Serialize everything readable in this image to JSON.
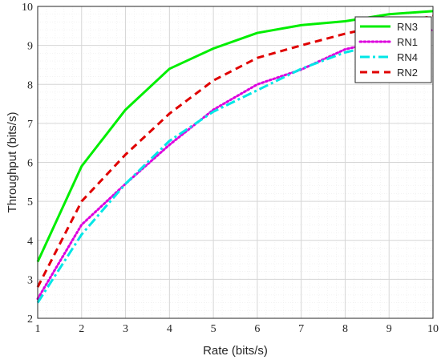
{
  "chart_data": {
    "type": "line",
    "title": "",
    "xlabel": "Rate (bits/s)",
    "ylabel": "Throughput (bits/s)",
    "xlim": [
      1,
      10
    ],
    "ylim": [
      2,
      10
    ],
    "xticks": [
      "1",
      "2",
      "3",
      "4",
      "5",
      "6",
      "7",
      "8",
      "9",
      "10"
    ],
    "yticks": [
      "2",
      "3",
      "4",
      "5",
      "6",
      "7",
      "8",
      "9",
      "10"
    ],
    "grid": true,
    "minor_grid": true,
    "legend_position": "top-right",
    "x": [
      1,
      2,
      3,
      4,
      5,
      6,
      7,
      8,
      9,
      10
    ],
    "series": [
      {
        "name": "RN3",
        "color": "#00ee00",
        "dash": "solid",
        "values": [
          3.45,
          5.9,
          7.35,
          8.4,
          8.92,
          9.32,
          9.52,
          9.62,
          9.8,
          9.88
        ]
      },
      {
        "name": "RN1",
        "color": "#dd00dd",
        "dash": "dotted",
        "values": [
          2.5,
          4.4,
          5.45,
          6.45,
          7.35,
          8.0,
          8.38,
          8.9,
          9.15,
          9.4
        ]
      },
      {
        "name": "RN4",
        "color": "#00e6e6",
        "dash": "dashdot",
        "values": [
          2.4,
          4.15,
          5.45,
          6.55,
          7.3,
          7.85,
          8.4,
          8.82,
          9.08,
          9.35
        ]
      },
      {
        "name": "RN2",
        "color": "#e00000",
        "dash": "dashed",
        "values": [
          2.8,
          5.0,
          6.2,
          7.25,
          8.1,
          8.68,
          9.0,
          9.3,
          9.55,
          9.75
        ]
      }
    ]
  }
}
